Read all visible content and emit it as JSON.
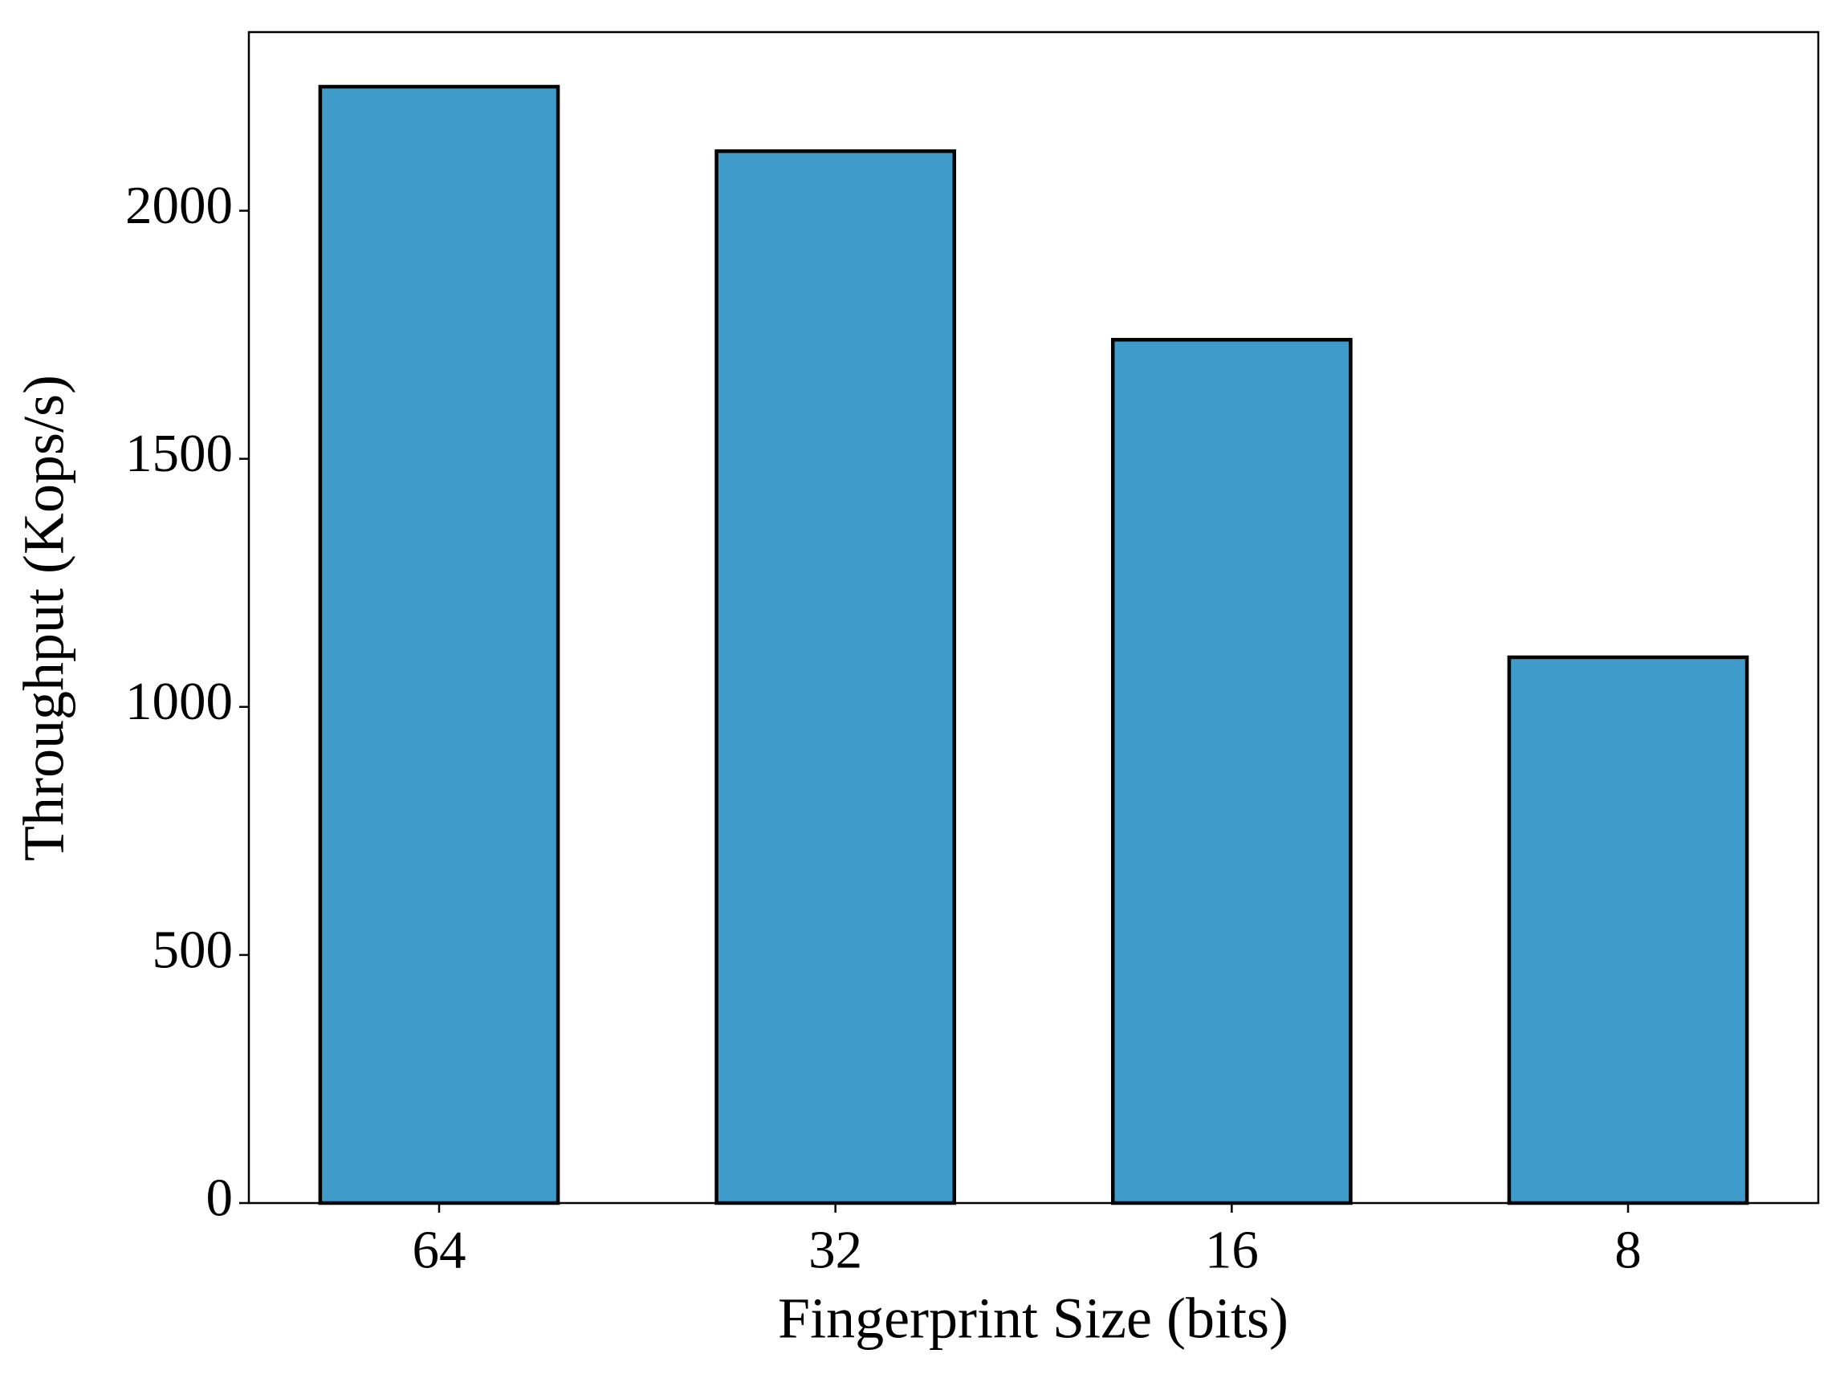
{
  "chart_data": {
    "type": "bar",
    "x_label": "Fingerprint Size (bits)",
    "y_label": "Throughput (Kops/s)",
    "categories": [
      "64",
      "32",
      "16",
      "8"
    ],
    "values": [
      2250,
      2120,
      1740,
      1100
    ],
    "color": "#3f9bc9",
    "edge_color": "#000000",
    "ylim": [
      0,
      2360
    ],
    "yticks": [
      0,
      500,
      1000,
      1500,
      2000
    ],
    "grid": false
  }
}
